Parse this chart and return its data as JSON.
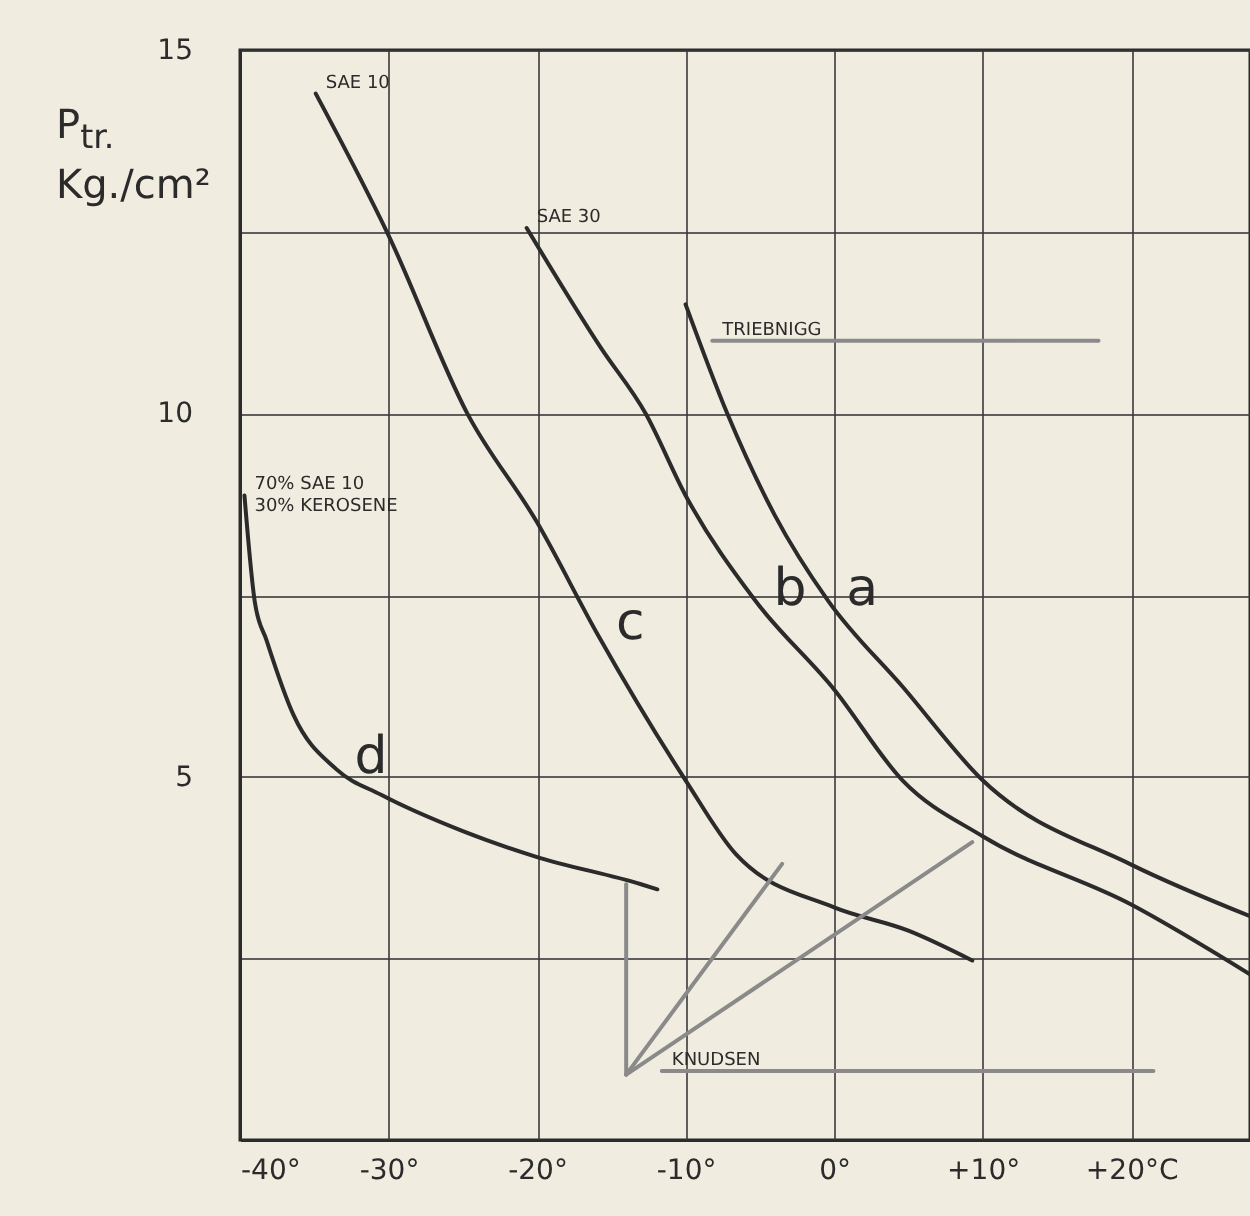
{
  "chart_data": {
    "type": "line",
    "ylabel": "P$_{tr.}$ Kg./cm²",
    "xlim": [
      -40,
      28
    ],
    "ylim": [
      0,
      15
    ],
    "xticks": [
      {
        "value": -40,
        "label": "-40°"
      },
      {
        "value": -30,
        "label": "-30°"
      },
      {
        "value": -20,
        "label": "-20°"
      },
      {
        "value": -10,
        "label": "-10°"
      },
      {
        "value": 0,
        "label": "0°"
      },
      {
        "value": 10,
        "label": "+10°"
      },
      {
        "value": 20,
        "label": "+20°C"
      }
    ],
    "yticks": [
      {
        "value": 0,
        "label": null
      },
      {
        "value": 2.5,
        "label": null
      },
      5,
      {
        "value": 7.5,
        "label": null
      },
      10,
      {
        "value": 12.5,
        "label": null
      },
      15
    ],
    "grid": true,
    "series": [
      {
        "name": "a",
        "color": "#2b2b2b",
        "x": [
          -10,
          -7.2,
          -4,
          -0.4,
          4.6,
          10,
          20,
          28
        ],
        "values": [
          11.5,
          10,
          8.6,
          7.42,
          6.24,
          4.95,
          3.79,
          3.08
        ]
      },
      {
        "name": "b",
        "color": "#2b2b2b",
        "x": [
          -20.7,
          -15.7,
          -12.7,
          -10,
          -5.3,
          0,
          4.6,
          10,
          20,
          28
        ],
        "values": [
          12.55,
          10.9,
          10,
          8.87,
          7.42,
          6.2,
          4.95,
          4.18,
          3.24,
          2.28
        ]
      },
      {
        "name": "c",
        "color": "#2b2b2b",
        "x": [
          -34.9,
          -30,
          -24.7,
          -20,
          -15.9,
          -10,
          -6.6,
          0,
          5,
          9.3
        ],
        "values": [
          14.4,
          12.45,
          10,
          8.5,
          6.95,
          4.95,
          3.93,
          3.2,
          2.88,
          2.47
        ]
      },
      {
        "name": "d",
        "color": "#2b2b2b",
        "x": [
          -39.7,
          -39,
          -38.2,
          -36.4,
          -33.5,
          -30.5,
          -25,
          -20.1,
          -13,
          -11.9
        ],
        "values": [
          8.87,
          7.4,
          6.87,
          5.85,
          5.1,
          4.75,
          4.25,
          3.9,
          3.52,
          3.45
        ]
      },
      {
        "color": "#8a8a8a",
        "x": [
          -14,
          -14
        ],
        "values": [
          3.52,
          0.9
        ]
      },
      {
        "color": "#8a8a8a",
        "x": [
          -14,
          -3.5
        ],
        "values": [
          0.9,
          3.8
        ]
      },
      {
        "color": "#8a8a8a",
        "x": [
          -14,
          9.3
        ],
        "values": [
          0.9,
          4.1
        ]
      },
      {
        "color": "#8a8a8a",
        "x": [
          -11.6,
          21.5
        ],
        "values": [
          0.95,
          0.95
        ]
      },
      {
        "color": "#8a8a8a",
        "x": [
          -8.2,
          17.8
        ],
        "values": [
          11.0,
          11.0
        ]
      }
    ],
    "annotations": [
      {
        "text": "SAE 10",
        "x": -34.9,
        "y": 14.4
      },
      {
        "text": "SAE 30",
        "x": -20.7,
        "y": 12.55
      },
      {
        "text": "TRIEBNIGG",
        "x": -8.2,
        "y": 11.0
      },
      {
        "text": "70% SAE 10\n30% KEROSENE",
        "x": -39.7,
        "y": 8.87
      },
      {
        "text": "KNUDSEN",
        "x": -11.6,
        "y": 0.95
      }
    ]
  }
}
